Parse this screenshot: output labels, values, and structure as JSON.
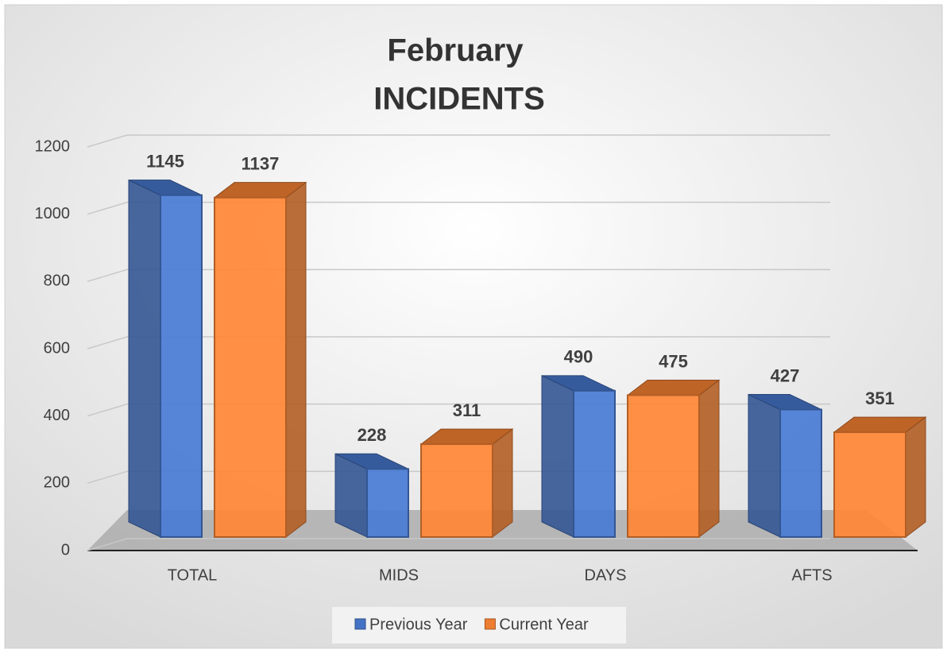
{
  "chart_data": {
    "type": "bar3d",
    "title": [
      "February",
      "INCIDENTS"
    ],
    "categories": [
      "TOTAL",
      "MIDS",
      "DAYS",
      "AFTS"
    ],
    "series": [
      {
        "name": "Previous Year",
        "color": "#4472c4",
        "values": [
          1145,
          228,
          490,
          427
        ]
      },
      {
        "name": "Current Year",
        "color": "#ed7d31",
        "values": [
          1137,
          311,
          475,
          351
        ]
      }
    ],
    "ylim": [
      0,
      1200
    ],
    "yticks": [
      0,
      200,
      400,
      600,
      800,
      1000,
      1200
    ],
    "grid": true,
    "legend": "bottom"
  }
}
